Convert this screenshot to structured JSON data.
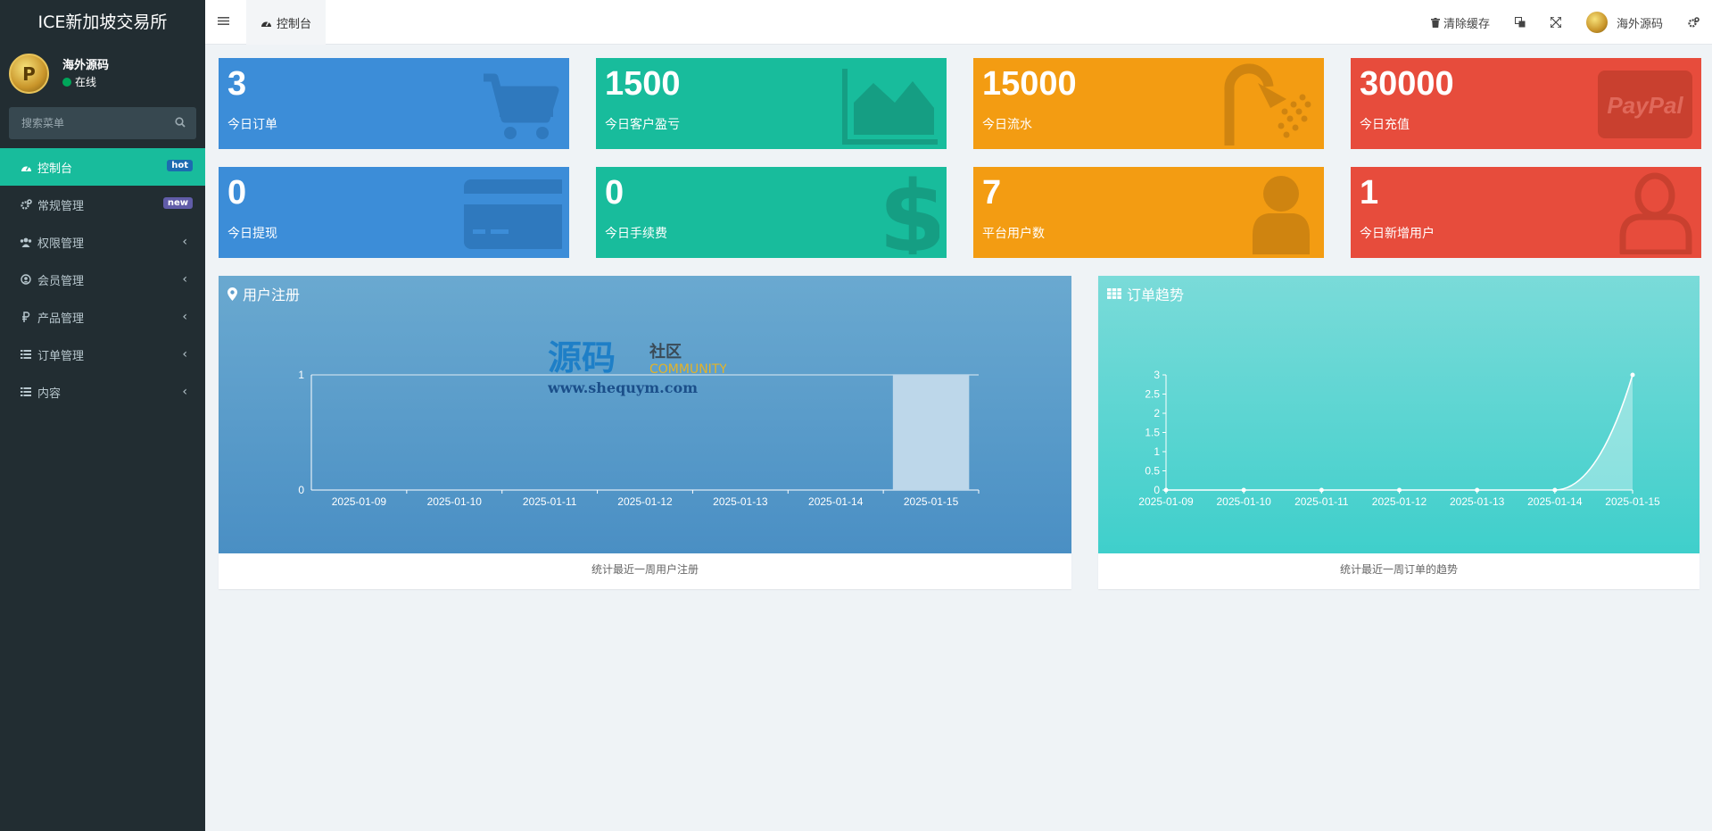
{
  "sidebar": {
    "brand": "ICE新加坡交易所",
    "user": {
      "name": "海外源码",
      "status": "在线"
    },
    "search_placeholder": "搜索菜单",
    "items": [
      {
        "label": "控制台",
        "icon": "dashboard-icon",
        "badge": "hot",
        "active": true
      },
      {
        "label": "常规管理",
        "icon": "cogs-icon",
        "badge": "new"
      },
      {
        "label": "权限管理",
        "icon": "group-icon"
      },
      {
        "label": "会员管理",
        "icon": "user-circle-icon"
      },
      {
        "label": "产品管理",
        "icon": "ruble-icon"
      },
      {
        "label": "订单管理",
        "icon": "list-icon"
      },
      {
        "label": "内容",
        "icon": "list-icon"
      }
    ]
  },
  "header": {
    "tab_label": "控制台",
    "clear_cache": "清除缓存",
    "username": "海外源码"
  },
  "stats": [
    {
      "value": "3",
      "label": "今日订单",
      "color": "#3c8dd8",
      "icon": "cart-icon"
    },
    {
      "value": "1500",
      "label": "今日客户盈亏",
      "color": "#18bc9c",
      "icon": "area-chart-icon"
    },
    {
      "value": "15000",
      "label": "今日流水",
      "color": "#f39c12",
      "icon": "shower-icon"
    },
    {
      "value": "30000",
      "label": "今日充值",
      "color": "#e74c3c",
      "icon": "paypal-icon"
    },
    {
      "value": "0",
      "label": "今日提现",
      "color": "#3c8dd8",
      "icon": "credit-card-icon"
    },
    {
      "value": "0",
      "label": "今日手续费",
      "color": "#18bc9c",
      "icon": "dollar-icon"
    },
    {
      "value": "7",
      "label": "平台用户数",
      "color": "#f39c12",
      "icon": "user-icon"
    },
    {
      "value": "1",
      "label": "今日新增用户",
      "color": "#e74c3c",
      "icon": "user-outline-icon"
    }
  ],
  "paypal_text": "PayPal",
  "watermark": {
    "main": "源码",
    "side": "社区",
    "sub": "COMMUNITY",
    "url": "www.shequym.com"
  },
  "panels": {
    "users": {
      "title": "用户注册",
      "footer": "统计最近一周用户注册"
    },
    "orders": {
      "title": "订单趋势",
      "footer": "统计最近一周订单的趋势"
    }
  },
  "chart_data": [
    {
      "type": "bar",
      "categories": [
        "2025-01-09",
        "2025-01-10",
        "2025-01-11",
        "2025-01-12",
        "2025-01-13",
        "2025-01-14",
        "2025-01-15"
      ],
      "values": [
        0,
        0,
        0,
        0,
        0,
        0,
        1
      ],
      "ylim": [
        0,
        1
      ],
      "yticks": [
        0,
        1
      ]
    },
    {
      "type": "area",
      "categories": [
        "2025-01-09",
        "2025-01-10",
        "2025-01-11",
        "2025-01-12",
        "2025-01-13",
        "2025-01-14",
        "2025-01-15"
      ],
      "values": [
        0,
        0,
        0,
        0,
        0,
        0,
        3
      ],
      "ylim": [
        0,
        3
      ],
      "yticks": [
        0,
        0.5,
        1,
        1.5,
        2,
        2.5,
        3
      ]
    }
  ]
}
